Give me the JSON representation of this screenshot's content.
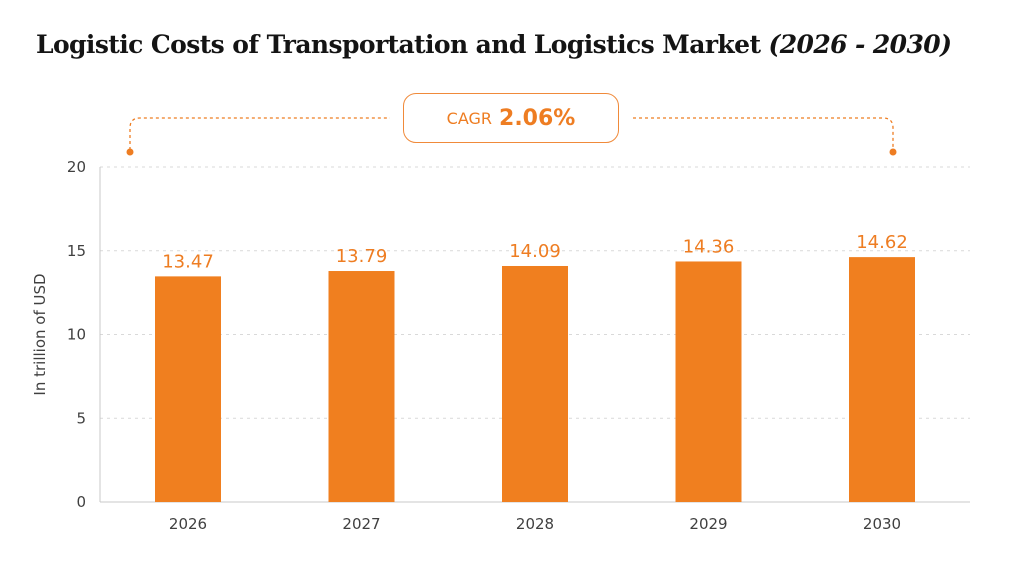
{
  "title_main": "Logistic Costs of Transportation and Logistics Market",
  "title_years": "(2026 - 2030)",
  "cagr": {
    "label": "CAGR",
    "value": "2.06%"
  },
  "colors": {
    "bar": "#f07f1f",
    "accent": "#ee7d22",
    "grid": "#d9d9d9",
    "axis": "#c8c8c8"
  },
  "chart_data": {
    "type": "bar",
    "title": "Logistic Costs of Transportation and Logistics Market (2026 - 2030)",
    "categories": [
      "2026",
      "2027",
      "2028",
      "2029",
      "2030"
    ],
    "values": [
      13.47,
      13.79,
      14.09,
      14.36,
      14.62
    ],
    "value_labels": [
      "13.47",
      "13.79",
      "14.09",
      "14.36",
      "14.62"
    ],
    "xlabel": "",
    "ylabel": "In trillion of USD",
    "ylim": [
      0,
      20
    ],
    "yticks": [
      0,
      5,
      10,
      15,
      20
    ],
    "grid": true,
    "legend": "none"
  }
}
